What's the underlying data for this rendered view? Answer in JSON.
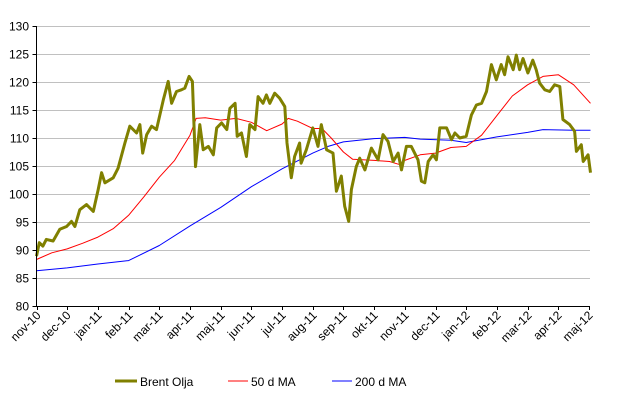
{
  "chart_data": {
    "type": "line",
    "title": "",
    "xlabel": "",
    "ylabel": "",
    "x_unit": "months since nov-10 (0 = nov-10, 18 = maj-12)",
    "ylim": [
      80,
      130
    ],
    "yticks": [
      80,
      85,
      90,
      95,
      100,
      105,
      110,
      115,
      120,
      125,
      130
    ],
    "categories": [
      "nov-10",
      "dec-10",
      "jan-11",
      "feb-11",
      "mar-11",
      "apr-11",
      "maj-11",
      "jun-11",
      "jul-11",
      "aug-11",
      "sep-11",
      "okt-11",
      "nov-11",
      "dec-11",
      "jan-12",
      "feb-12",
      "mar-12",
      "apr-12",
      "maj-12"
    ],
    "grid": true,
    "legend_position": "bottom",
    "series": [
      {
        "name": "Brent Olja",
        "color": "#808000",
        "points": [
          [
            0,
            88.9
          ],
          [
            0.09,
            91.3
          ],
          [
            0.21,
            90.7
          ],
          [
            0.32,
            91.9
          ],
          [
            0.54,
            91.6
          ],
          [
            0.76,
            93.7
          ],
          [
            0.98,
            94.2
          ],
          [
            1.14,
            95.1
          ],
          [
            1.25,
            94.2
          ],
          [
            1.41,
            97.2
          ],
          [
            1.63,
            98.1
          ],
          [
            1.85,
            96.9
          ],
          [
            2.01,
            100.8
          ],
          [
            2.12,
            103.8
          ],
          [
            2.23,
            102
          ],
          [
            2.5,
            102.9
          ],
          [
            2.66,
            104.6
          ],
          [
            2.88,
            109.1
          ],
          [
            3.04,
            112.1
          ],
          [
            3.26,
            110.9
          ],
          [
            3.37,
            112.4
          ],
          [
            3.46,
            107.3
          ],
          [
            3.59,
            110.6
          ],
          [
            3.75,
            112.1
          ],
          [
            3.91,
            111.5
          ],
          [
            4.13,
            116.8
          ],
          [
            4.29,
            120.1
          ],
          [
            4.4,
            116.2
          ],
          [
            4.56,
            118.3
          ],
          [
            4.72,
            118.6
          ],
          [
            4.83,
            118.9
          ],
          [
            4.97,
            121
          ],
          [
            5.08,
            120.1
          ],
          [
            5.18,
            104.9
          ],
          [
            5.32,
            112.4
          ],
          [
            5.43,
            107.9
          ],
          [
            5.6,
            108.5
          ],
          [
            5.76,
            107
          ],
          [
            5.87,
            111.8
          ],
          [
            6.03,
            112.7
          ],
          [
            6.2,
            111.5
          ],
          [
            6.3,
            115.3
          ],
          [
            6.47,
            116.2
          ],
          [
            6.54,
            110.3
          ],
          [
            6.68,
            110.9
          ],
          [
            6.84,
            106.7
          ],
          [
            6.95,
            112.4
          ],
          [
            7.12,
            111.5
          ],
          [
            7.22,
            117.4
          ],
          [
            7.38,
            116.2
          ],
          [
            7.49,
            117.7
          ],
          [
            7.6,
            116.2
          ],
          [
            7.76,
            118
          ],
          [
            7.92,
            117.1
          ],
          [
            8.09,
            115.6
          ],
          [
            8.16,
            109.1
          ],
          [
            8.3,
            102.9
          ],
          [
            8.41,
            106.7
          ],
          [
            8.57,
            109.1
          ],
          [
            8.62,
            105.5
          ],
          [
            8.79,
            107.9
          ],
          [
            9.0,
            111.8
          ],
          [
            9.17,
            108.5
          ],
          [
            9.28,
            112.4
          ],
          [
            9.45,
            107.9
          ],
          [
            9.66,
            107.3
          ],
          [
            9.77,
            100.5
          ],
          [
            9.93,
            103.2
          ],
          [
            10.04,
            97.8
          ],
          [
            10.17,
            95.1
          ],
          [
            10.26,
            100.8
          ],
          [
            10.42,
            104.9
          ],
          [
            10.53,
            106.4
          ],
          [
            10.7,
            104.3
          ],
          [
            10.91,
            108.2
          ],
          [
            11.13,
            106.1
          ],
          [
            11.29,
            110.6
          ],
          [
            11.45,
            109.4
          ],
          [
            11.62,
            105.8
          ],
          [
            11.78,
            107.3
          ],
          [
            11.89,
            104.3
          ],
          [
            12.05,
            108.5
          ],
          [
            12.21,
            108.5
          ],
          [
            12.43,
            106.1
          ],
          [
            12.54,
            102.3
          ],
          [
            12.65,
            102
          ],
          [
            12.76,
            105.8
          ],
          [
            12.92,
            107
          ],
          [
            13.03,
            106.1
          ],
          [
            13.14,
            111.8
          ],
          [
            13.36,
            111.8
          ],
          [
            13.52,
            109.7
          ],
          [
            13.63,
            110.9
          ],
          [
            13.79,
            110
          ],
          [
            14.0,
            110.3
          ],
          [
            14.17,
            114.1
          ],
          [
            14.33,
            115.9
          ],
          [
            14.5,
            116.2
          ],
          [
            14.66,
            118.3
          ],
          [
            14.82,
            123.1
          ],
          [
            14.98,
            120.4
          ],
          [
            15.14,
            123.1
          ],
          [
            15.25,
            121.3
          ],
          [
            15.36,
            124.5
          ],
          [
            15.53,
            122.2
          ],
          [
            15.63,
            124.8
          ],
          [
            15.74,
            122.2
          ],
          [
            15.85,
            124.2
          ],
          [
            16.01,
            121.6
          ],
          [
            16.17,
            123.9
          ],
          [
            16.28,
            122.2
          ],
          [
            16.39,
            119.8
          ],
          [
            16.56,
            118.6
          ],
          [
            16.72,
            118.3
          ],
          [
            16.88,
            119.5
          ],
          [
            17.05,
            119.2
          ],
          [
            17.15,
            113.3
          ],
          [
            17.37,
            112.4
          ],
          [
            17.53,
            111.2
          ],
          [
            17.59,
            107.6
          ],
          [
            17.75,
            108.8
          ],
          [
            17.81,
            105.8
          ],
          [
            17.97,
            107
          ],
          [
            18.05,
            103.8
          ]
        ]
      },
      {
        "name": "50 d MA",
        "color": "#ff0000",
        "points": [
          [
            0,
            88.3
          ],
          [
            0.5,
            89.5
          ],
          [
            1,
            90.2
          ],
          [
            1.5,
            91.2
          ],
          [
            2,
            92.3
          ],
          [
            2.5,
            93.8
          ],
          [
            3,
            96.2
          ],
          [
            3.5,
            99.5
          ],
          [
            4,
            103
          ],
          [
            4.5,
            106
          ],
          [
            5,
            110.5
          ],
          [
            5.2,
            113.5
          ],
          [
            5.5,
            113.6
          ],
          [
            6,
            113.2
          ],
          [
            6.5,
            113.5
          ],
          [
            7,
            112.8
          ],
          [
            7.5,
            111.3
          ],
          [
            8,
            112.5
          ],
          [
            8.2,
            113.5
          ],
          [
            8.5,
            113
          ],
          [
            9,
            111.7
          ],
          [
            9.3,
            111.7
          ],
          [
            9.6,
            110
          ],
          [
            10,
            107.5
          ],
          [
            10.3,
            106.2
          ],
          [
            11,
            106
          ],
          [
            11.5,
            105.8
          ],
          [
            11.8,
            105.3
          ],
          [
            12,
            106
          ],
          [
            12.5,
            107
          ],
          [
            13,
            107.3
          ],
          [
            13.5,
            108.3
          ],
          [
            14,
            108.5
          ],
          [
            14.5,
            110.5
          ],
          [
            15,
            114
          ],
          [
            15.5,
            117.5
          ],
          [
            16,
            119.5
          ],
          [
            16.5,
            121
          ],
          [
            17,
            121.3
          ],
          [
            17.5,
            119.5
          ],
          [
            18.05,
            116.2
          ]
        ]
      },
      {
        "name": "200 d MA",
        "color": "#0000ff",
        "points": [
          [
            0,
            86.3
          ],
          [
            1,
            86.8
          ],
          [
            2,
            87.5
          ],
          [
            3,
            88.1
          ],
          [
            4,
            90.8
          ],
          [
            5,
            94.3
          ],
          [
            6,
            97.6
          ],
          [
            7,
            101.3
          ],
          [
            8,
            104.5
          ],
          [
            9,
            107.3
          ],
          [
            9.5,
            108.5
          ],
          [
            10,
            109.3
          ],
          [
            11,
            109.9
          ],
          [
            12,
            110.1
          ],
          [
            12.5,
            109.8
          ],
          [
            13.5,
            109.6
          ],
          [
            14,
            109.2
          ],
          [
            15,
            110.2
          ],
          [
            16,
            111
          ],
          [
            16.5,
            111.5
          ],
          [
            17.5,
            111.4
          ],
          [
            18.05,
            111.4
          ]
        ]
      }
    ]
  }
}
